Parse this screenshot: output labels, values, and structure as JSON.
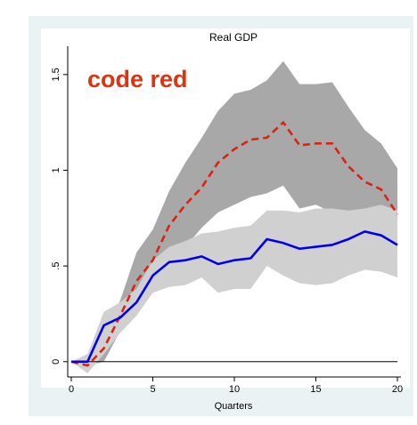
{
  "chart_data": {
    "type": "line",
    "title": "Real GDP",
    "xlabel": "Quarters",
    "ylabel": "",
    "xlim": [
      0,
      20
    ],
    "ylim": [
      -0.08,
      1.62
    ],
    "x_ticks": [
      0,
      5,
      10,
      15,
      20
    ],
    "y_ticks": [
      {
        "value": 0,
        "label": "0"
      },
      {
        "value": 0.5,
        "label": ".5"
      },
      {
        "value": 1,
        "label": "1"
      },
      {
        "value": 1.5,
        "label": "1.5"
      }
    ],
    "grid": false,
    "annotation": {
      "text": "code red",
      "color": "#dd3311"
    },
    "x": [
      0,
      1,
      2,
      3,
      4,
      5,
      6,
      7,
      8,
      9,
      10,
      11,
      12,
      13,
      14,
      15,
      16,
      17,
      18,
      19,
      20
    ],
    "series": [
      {
        "style": "dashed",
        "color": "#dd2211",
        "values": [
          0,
          -0.02,
          0.07,
          0.24,
          0.42,
          0.53,
          0.71,
          0.82,
          0.91,
          1.04,
          1.11,
          1.16,
          1.17,
          1.25,
          1.13,
          1.14,
          1.14,
          1.02,
          0.94,
          0.9,
          0.77
        ]
      },
      {
        "style": "solid",
        "color": "#0000ee",
        "values": [
          0,
          0,
          0.19,
          0.23,
          0.31,
          0.45,
          0.52,
          0.53,
          0.55,
          0.51,
          0.53,
          0.54,
          0.64,
          0.62,
          0.59,
          0.6,
          0.61,
          0.64,
          0.68,
          0.66,
          0.61
        ]
      }
    ],
    "bands": [
      {
        "color": "#a8a8a8",
        "lower": [
          0,
          -0.02,
          0.0,
          0.16,
          0.3,
          0.43,
          0.55,
          0.6,
          0.7,
          0.78,
          0.82,
          0.86,
          0.88,
          0.92,
          0.8,
          0.82,
          0.78,
          0.72,
          0.6,
          0.58,
          0.52
        ],
        "upper": [
          0,
          0.02,
          0.14,
          0.32,
          0.57,
          0.69,
          0.89,
          1.04,
          1.17,
          1.31,
          1.4,
          1.42,
          1.47,
          1.57,
          1.45,
          1.45,
          1.46,
          1.33,
          1.21,
          1.14,
          1.01
        ]
      },
      {
        "color": "#d0d0d0",
        "lower": [
          0,
          -0.06,
          0.04,
          0.15,
          0.24,
          0.36,
          0.39,
          0.4,
          0.44,
          0.36,
          0.38,
          0.38,
          0.5,
          0.45,
          0.41,
          0.4,
          0.41,
          0.45,
          0.48,
          0.47,
          0.44
        ],
        "upper": [
          0,
          0.04,
          0.26,
          0.31,
          0.38,
          0.53,
          0.6,
          0.63,
          0.67,
          0.68,
          0.7,
          0.71,
          0.79,
          0.79,
          0.78,
          0.8,
          0.8,
          0.79,
          0.8,
          0.82,
          0.79
        ]
      }
    ]
  }
}
